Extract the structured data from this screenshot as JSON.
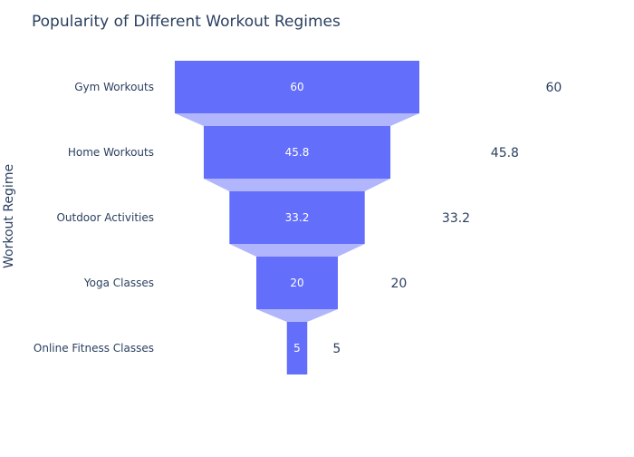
{
  "chart_data": {
    "type": "funnel",
    "title": "Popularity of Different Workout Regimes",
    "ylabel": "Workout Regime",
    "categories": [
      "Gym Workouts",
      "Home Workouts",
      "Outdoor Activities",
      "Yoga Classes",
      "Online Fitness Classes"
    ],
    "values": [
      60,
      45.8,
      33.2,
      20,
      5
    ],
    "value_labels": [
      "60",
      "45.8",
      "33.2",
      "20",
      "5"
    ],
    "bar_color": "#636efa",
    "connector_color": "#b1b6fc",
    "inside_text_color": "#ffffff",
    "text_color": "#2a3f5f"
  }
}
